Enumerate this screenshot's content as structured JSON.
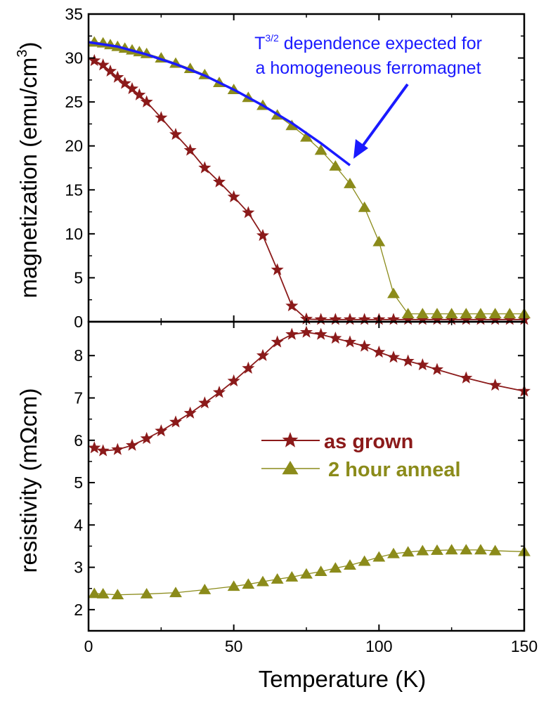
{
  "chart_data": [
    {
      "type": "line",
      "panel": "top",
      "ylabel": "magnetization (emu/cm",
      "ylabel_sup": "3",
      "ylabel_close": ")",
      "xlim": [
        0,
        150
      ],
      "ylim": [
        0,
        35
      ],
      "yticks": [
        0,
        5,
        10,
        15,
        20,
        25,
        30,
        35
      ],
      "series": [
        {
          "name": "as grown",
          "color": "#8b1a1a",
          "marker": "star",
          "x": [
            2,
            5,
            7.5,
            10,
            12.5,
            15,
            17.5,
            20,
            25,
            30,
            35,
            40,
            45,
            50,
            55,
            60,
            65,
            70,
            75,
            80,
            85,
            90,
            95,
            100,
            105,
            110,
            115,
            120,
            125,
            130,
            135,
            140,
            145,
            150
          ],
          "y": [
            29.7,
            29.2,
            28.5,
            27.8,
            27.1,
            26.5,
            25.8,
            25.0,
            23.2,
            21.3,
            19.5,
            17.5,
            15.9,
            14.2,
            12.4,
            9.8,
            5.9,
            1.8,
            0.3,
            0.25,
            0.25,
            0.25,
            0.25,
            0.25,
            0.25,
            0.25,
            0.25,
            0.25,
            0.25,
            0.25,
            0.25,
            0.25,
            0.25,
            0.25
          ]
        },
        {
          "name": "2 hour anneal",
          "color": "#8b8b1a",
          "marker": "triangle",
          "x": [
            2,
            5,
            7.5,
            10,
            12.5,
            15,
            17.5,
            20,
            25,
            30,
            35,
            40,
            45,
            50,
            55,
            60,
            65,
            70,
            75,
            80,
            85,
            90,
            95,
            100,
            105,
            110,
            115,
            120,
            125,
            130,
            135,
            140,
            145,
            150
          ],
          "y": [
            31.8,
            31.7,
            31.5,
            31.3,
            31.1,
            30.9,
            30.7,
            30.5,
            30.0,
            29.4,
            28.8,
            28.1,
            27.2,
            26.4,
            25.5,
            24.6,
            23.5,
            22.3,
            21.0,
            19.5,
            17.7,
            15.7,
            13.0,
            9.1,
            3.2,
            0.9,
            0.9,
            0.9,
            0.9,
            0.9,
            0.9,
            0.9,
            0.9,
            0.9
          ]
        },
        {
          "name": "T^3/2 fit",
          "color": "#1a1aff",
          "marker": "none",
          "x": [
            0,
            10,
            20,
            30,
            40,
            50,
            60,
            70,
            80,
            90
          ],
          "y": [
            31.8,
            31.3,
            30.4,
            29.3,
            28.0,
            26.4,
            24.6,
            22.6,
            20.3,
            17.8
          ]
        }
      ],
      "annotation": {
        "line1_base": "T",
        "line1_sup": "3/2",
        "line1_rest": " dependence expected for",
        "line2": "a homogeneous ferromagnet"
      }
    },
    {
      "type": "line",
      "panel": "bottom",
      "ylabel": "resistivity (mΩcm)",
      "xlabel": "Temperature (K)",
      "xlim": [
        0,
        150
      ],
      "ylim": [
        1.5,
        8.8
      ],
      "xticks": [
        0,
        50,
        100,
        150
      ],
      "yticks": [
        2,
        3,
        4,
        5,
        6,
        7,
        8
      ],
      "series": [
        {
          "name": "as grown",
          "color": "#8b1a1a",
          "marker": "star",
          "x": [
            2,
            5,
            10,
            15,
            20,
            25,
            30,
            35,
            40,
            45,
            50,
            55,
            60,
            65,
            70,
            75,
            80,
            85,
            90,
            95,
            100,
            105,
            110,
            115,
            120,
            130,
            140,
            150
          ],
          "y": [
            5.82,
            5.75,
            5.78,
            5.88,
            6.04,
            6.22,
            6.43,
            6.64,
            6.88,
            7.13,
            7.4,
            7.7,
            8.0,
            8.32,
            8.5,
            8.55,
            8.5,
            8.41,
            8.32,
            8.22,
            8.08,
            7.96,
            7.87,
            7.78,
            7.67,
            7.47,
            7.3,
            7.16
          ]
        },
        {
          "name": "2 hour anneal",
          "color": "#8b8b1a",
          "marker": "triangle",
          "x": [
            2,
            5,
            10,
            20,
            30,
            40,
            50,
            55,
            60,
            65,
            70,
            75,
            80,
            85,
            90,
            95,
            100,
            105,
            110,
            115,
            120,
            125,
            130,
            135,
            140,
            150
          ],
          "y": [
            2.38,
            2.37,
            2.35,
            2.37,
            2.4,
            2.47,
            2.55,
            2.6,
            2.66,
            2.72,
            2.77,
            2.84,
            2.9,
            2.98,
            3.05,
            3.14,
            3.24,
            3.32,
            3.36,
            3.39,
            3.4,
            3.41,
            3.41,
            3.41,
            3.39,
            3.37
          ]
        }
      ]
    }
  ],
  "legend": {
    "items": [
      "as grown",
      "2 hour anneal"
    ],
    "placement": "center-right of bottom panel"
  }
}
